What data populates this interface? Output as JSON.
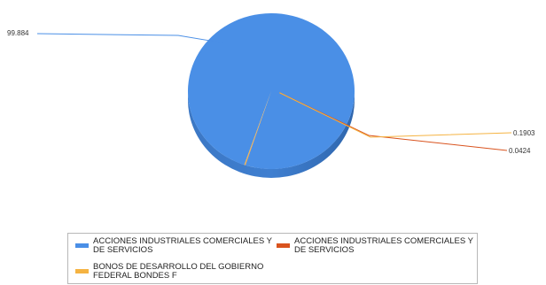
{
  "chart_data": {
    "type": "pie",
    "title": "",
    "slices": [
      {
        "label": "ACCIONES INDUSTRIALES COMERCIALES Y DE SERVICIOS",
        "value": 99.884,
        "value_label": "99.884",
        "color": "#4a8fe6"
      },
      {
        "label": "ACCIONES INDUSTRIALES COMERCIALES Y DE SERVICIOS",
        "value": 0.0424,
        "value_label": "0.0424",
        "color": "#d9531e"
      },
      {
        "label": "BONOS DE DESARROLLO DEL GOBIERNO FEDERAL BONDES F",
        "value": 0.1903,
        "value_label": "0.1903",
        "color": "#f5b342"
      }
    ],
    "legend_position": "bottom",
    "style": "3d"
  }
}
